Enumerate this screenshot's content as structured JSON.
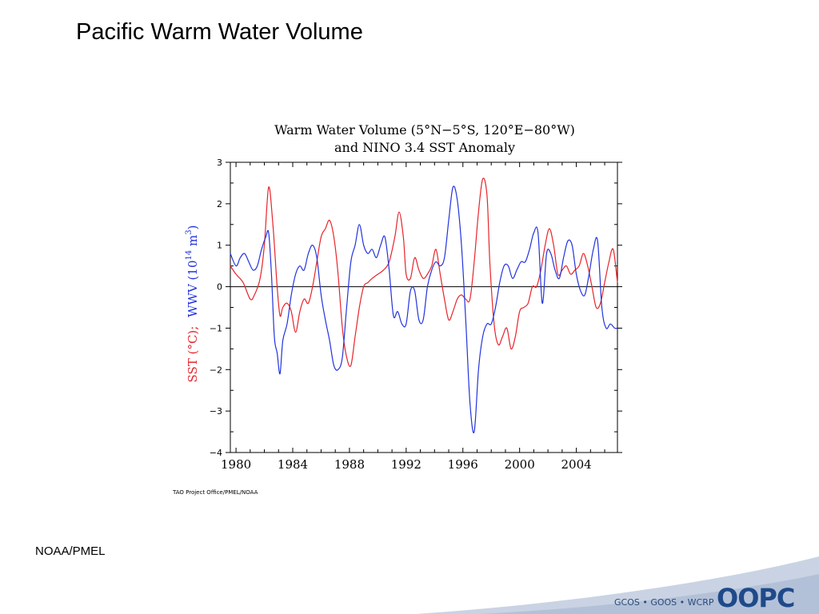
{
  "slide": {
    "title": "Pacific Warm Water Volume",
    "credit": "TAO Project Office/PMEL/NOAA",
    "source": "NOAA/PMEL",
    "footer": "GCOS • GOOS • WCRP",
    "logo": "OOPC"
  },
  "colors": {
    "sst": "#e8242a",
    "wwv": "#2233dd",
    "footer_band": "#c9d3e3",
    "footer_text": "#2a4a7a",
    "logo": "#1f4a8a"
  },
  "chart_data": {
    "type": "line",
    "title_line1": "Warm Water Volume (5°N−5°S, 120°E−80°W)",
    "title_line2": "and NINO 3.4 SST Anomaly",
    "ylabel_sst": "SST (°C);",
    "ylabel_wwv": "WWV (10",
    "ylabel_wwv_exp": "14",
    "ylabel_wwv_unit": " m",
    "ylabel_wwv_exp2": "3",
    "ylabel_wwv_close": ")",
    "xlim": [
      1979.6,
      2006.9
    ],
    "ylim": [
      -4,
      3
    ],
    "x_ticks": [
      1980,
      1984,
      1988,
      1992,
      1996,
      2000,
      2004
    ],
    "x_tick_labels": [
      "1980",
      "1984",
      "1988",
      "1992",
      "1996",
      "2000",
      "2004"
    ],
    "y_ticks": [
      -4,
      -3,
      -2,
      -1,
      0,
      1,
      2,
      3
    ],
    "y_tick_labels": [
      "−4",
      "−3",
      "−2",
      "−1",
      "0",
      "1",
      "2",
      "3"
    ],
    "zero_line": true,
    "series": [
      {
        "id": "sst",
        "color": "#e8242a",
        "x": [
          1979.6,
          1980.0,
          1980.5,
          1981.0,
          1981.3,
          1981.7,
          1982.0,
          1982.3,
          1982.6,
          1982.9,
          1983.1,
          1983.3,
          1983.6,
          1983.9,
          1984.2,
          1984.5,
          1984.8,
          1985.1,
          1985.4,
          1985.7,
          1986.0,
          1986.3,
          1986.6,
          1986.9,
          1987.2,
          1987.5,
          1987.8,
          1988.1,
          1988.4,
          1988.7,
          1989.0,
          1989.3,
          1989.6,
          1990.0,
          1990.4,
          1990.8,
          1991.2,
          1991.5,
          1991.8,
          1992.0,
          1992.3,
          1992.6,
          1992.9,
          1993.2,
          1993.5,
          1993.8,
          1994.1,
          1994.4,
          1994.7,
          1995.0,
          1995.3,
          1995.6,
          1995.9,
          1996.2,
          1996.5,
          1996.8,
          1997.1,
          1997.4,
          1997.7,
          1997.9,
          1998.2,
          1998.5,
          1998.8,
          1999.1,
          1999.4,
          1999.7,
          2000.0,
          2000.3,
          2000.6,
          2000.9,
          2001.2,
          2001.5,
          2001.8,
          2002.1,
          2002.4,
          2002.7,
          2003.0,
          2003.3,
          2003.6,
          2003.9,
          2004.2,
          2004.5,
          2004.8,
          2005.1,
          2005.4,
          2005.7,
          2006.0,
          2006.3,
          2006.6,
          2006.9
        ],
        "values": [
          0.5,
          0.3,
          0.1,
          -0.3,
          -0.2,
          0.2,
          1.0,
          2.4,
          1.5,
          0.0,
          -0.7,
          -0.5,
          -0.4,
          -0.6,
          -1.1,
          -0.6,
          -0.3,
          -0.4,
          0.0,
          0.6,
          1.2,
          1.4,
          1.6,
          1.2,
          0.3,
          -1.0,
          -1.7,
          -1.9,
          -1.2,
          -0.5,
          0.0,
          0.1,
          0.2,
          0.3,
          0.4,
          0.6,
          1.2,
          1.8,
          1.2,
          0.3,
          0.2,
          0.7,
          0.4,
          0.2,
          0.3,
          0.5,
          0.9,
          0.3,
          -0.3,
          -0.8,
          -0.6,
          -0.3,
          -0.2,
          -0.3,
          -0.3,
          0.6,
          1.8,
          2.6,
          2.2,
          0.6,
          -0.9,
          -1.4,
          -1.2,
          -1.0,
          -1.5,
          -1.2,
          -0.6,
          -0.5,
          -0.4,
          0.0,
          0.0,
          0.4,
          1.0,
          1.4,
          1.0,
          0.3,
          0.4,
          0.5,
          0.3,
          0.4,
          0.5,
          0.8,
          0.5,
          0.0,
          -0.5,
          -0.4,
          0.1,
          0.6,
          0.9,
          0.1
        ]
      },
      {
        "id": "wwv",
        "color": "#2233dd",
        "x": [
          1979.6,
          1980.0,
          1980.3,
          1980.6,
          1980.9,
          1981.2,
          1981.5,
          1981.8,
          1982.1,
          1982.3,
          1982.5,
          1982.7,
          1982.9,
          1983.1,
          1983.3,
          1983.6,
          1983.9,
          1984.2,
          1984.5,
          1984.8,
          1985.1,
          1985.4,
          1985.7,
          1986.0,
          1986.3,
          1986.6,
          1986.9,
          1987.2,
          1987.5,
          1987.8,
          1988.1,
          1988.4,
          1988.7,
          1989.0,
          1989.3,
          1989.6,
          1989.9,
          1990.2,
          1990.5,
          1990.8,
          1991.1,
          1991.4,
          1991.7,
          1992.0,
          1992.3,
          1992.6,
          1992.9,
          1993.2,
          1993.5,
          1993.8,
          1994.1,
          1994.4,
          1994.7,
          1995.0,
          1995.3,
          1995.6,
          1995.9,
          1996.2,
          1996.5,
          1996.8,
          1997.1,
          1997.4,
          1997.7,
          1998.0,
          1998.3,
          1998.6,
          1998.9,
          1999.2,
          1999.5,
          1999.8,
          2000.1,
          2000.4,
          2000.7,
          2001.0,
          2001.3,
          2001.6,
          2001.9,
          2002.2,
          2002.5,
          2002.8,
          2003.1,
          2003.4,
          2003.7,
          2004.0,
          2004.3,
          2004.6,
          2004.9,
          2005.2,
          2005.5,
          2005.8,
          2006.1,
          2006.4,
          2006.7,
          2006.9
        ],
        "values": [
          0.8,
          0.5,
          0.7,
          0.8,
          0.6,
          0.4,
          0.5,
          0.9,
          1.2,
          1.3,
          0.3,
          -1.2,
          -1.6,
          -2.1,
          -1.3,
          -0.9,
          -0.2,
          0.3,
          0.5,
          0.4,
          0.8,
          1.0,
          0.7,
          -0.2,
          -0.8,
          -1.3,
          -1.9,
          -2.0,
          -1.7,
          -0.5,
          0.6,
          1.0,
          1.5,
          1.0,
          0.8,
          0.9,
          0.7,
          1.0,
          1.2,
          0.4,
          -0.7,
          -0.6,
          -0.9,
          -0.9,
          -0.1,
          -0.1,
          -0.8,
          -0.8,
          0.0,
          0.4,
          0.6,
          0.5,
          0.7,
          1.6,
          2.4,
          2.1,
          1.0,
          -0.8,
          -2.8,
          -3.5,
          -2.0,
          -1.2,
          -0.9,
          -0.9,
          -0.5,
          0.1,
          0.5,
          0.5,
          0.2,
          0.4,
          0.6,
          0.6,
          0.9,
          1.3,
          1.3,
          -0.4,
          0.8,
          0.8,
          0.4,
          0.2,
          0.7,
          1.1,
          1.0,
          0.3,
          -0.1,
          -0.2,
          0.3,
          0.9,
          1.1,
          -0.5,
          -1.0,
          -0.9,
          -1.0,
          -1.0
        ]
      }
    ]
  }
}
